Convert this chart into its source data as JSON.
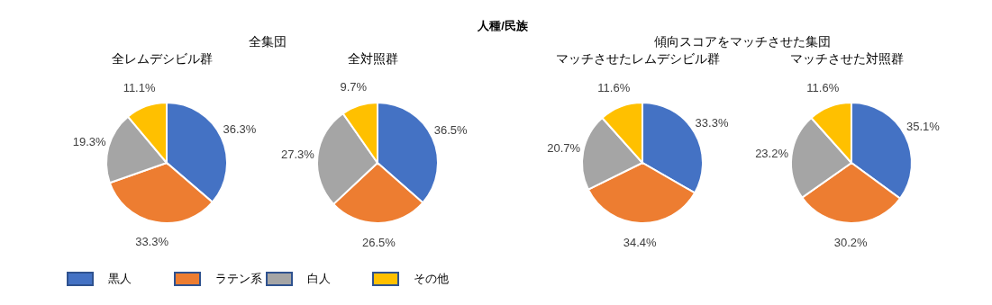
{
  "chart_data": [
    {
      "type": "pie",
      "title": "全レムデシビル群",
      "subtitle": "全集団",
      "annotations": [
        "人種/民族"
      ],
      "legend": "bottom",
      "categories": [
        "黒人",
        "ラテン系",
        "白人",
        "その他"
      ],
      "values": [
        36.3,
        33.3,
        19.3,
        11.1
      ],
      "value_labels": [
        "36.3%",
        "33.3%",
        "19.3%",
        "11.1%"
      ],
      "colors": [
        "#4472c4",
        "#ed7d31",
        "#a5a5a5",
        "#ffc000"
      ]
    },
    {
      "type": "pie",
      "title": "全対照群",
      "values": [
        36.5,
        26.5,
        27.3,
        9.7
      ],
      "value_labels": [
        "36.5%",
        "26.5%",
        "27.3%",
        "9.7%"
      ],
      "colors": [
        "#4472c4",
        "#ed7d31",
        "#a5a5a5",
        "#ffc000"
      ]
    },
    {
      "type": "pie",
      "title": "マッチさせたレムデシビル群",
      "subtitle": "傾向スコアをマッチさせた集団",
      "values": [
        33.3,
        34.4,
        20.7,
        11.6
      ],
      "value_labels": [
        "33.3%",
        "34.4%",
        "20.7%",
        "11.6%"
      ],
      "colors": [
        "#4472c4",
        "#ed7d31",
        "#a5a5a5",
        "#ffc000"
      ]
    },
    {
      "type": "pie",
      "title": "マッチさせた対照群",
      "values": [
        35.1,
        30.2,
        23.2,
        11.6
      ],
      "value_labels": [
        "35.1%",
        "30.2%",
        "23.2%",
        "11.6%"
      ],
      "colors": [
        "#4472c4",
        "#ed7d31",
        "#a5a5a5",
        "#ffc000"
      ]
    }
  ]
}
